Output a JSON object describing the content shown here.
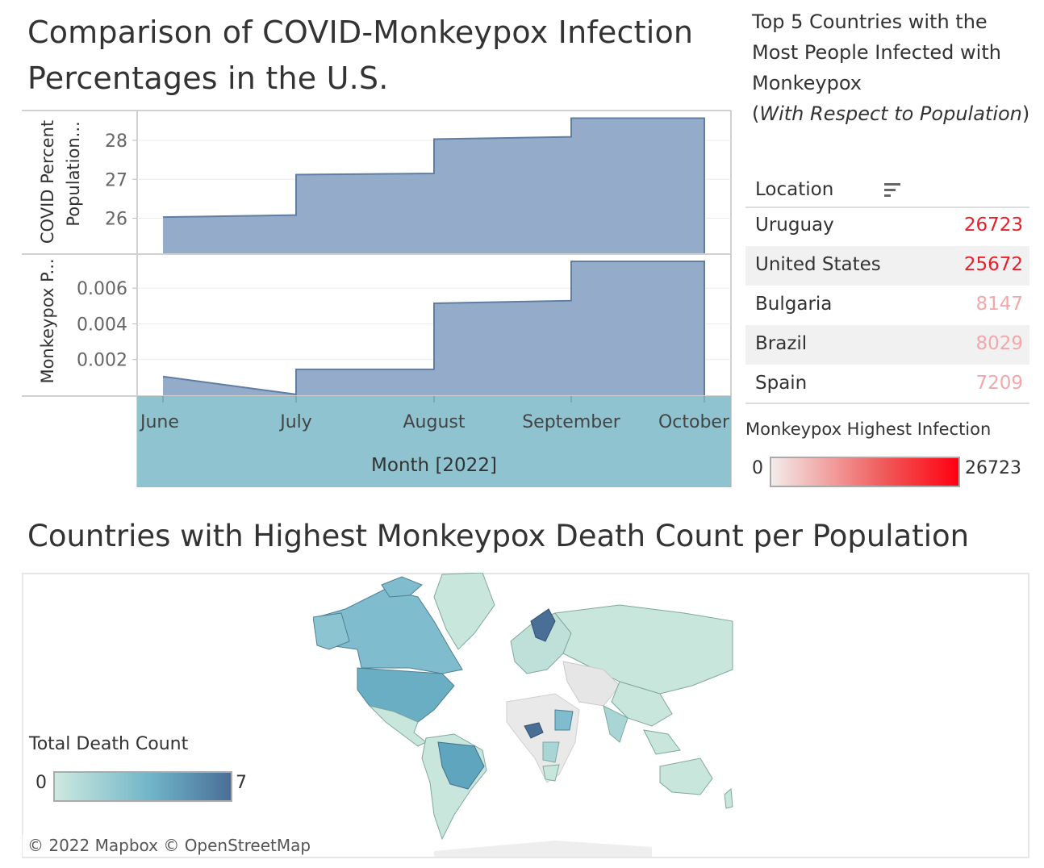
{
  "titles": {
    "main": "Comparison of COVID-Monkeypox Infection Percentages in the U.S.",
    "map": "Countries with Highest Monkeypox Death Count per Population"
  },
  "side_panel": {
    "title_line": "Top 5 Countries with the Most People Infected with Monkeypox",
    "subtitle_open": "(",
    "subtitle_italic": "With Respect to Population",
    "subtitle_close": ")",
    "column_header": "Location",
    "rows": [
      {
        "location": "Uruguay",
        "value": "26723",
        "color": "#e8202a"
      },
      {
        "location": "United States",
        "value": "25672",
        "color": "#e8202a"
      },
      {
        "location": "Bulgaria",
        "value": "8147",
        "color": "#f2a8ab"
      },
      {
        "location": "Brazil",
        "value": "8029",
        "color": "#f2a8ab"
      },
      {
        "location": "Spain",
        "value": "7209",
        "color": "#f2a8ab"
      }
    ]
  },
  "legend_infection": {
    "title": "Monkeypox Highest Infection",
    "min": "0",
    "max": "26723"
  },
  "legend_death": {
    "title": "Total Death Count",
    "min": "0",
    "max": "7"
  },
  "map_attribution": "© 2022 Mapbox  © OpenStreetMap",
  "colors": {
    "area_fill": "#8ea8c6",
    "area_stroke": "#5f7ea3",
    "axis_band": "#8fc3cf",
    "infection_max": "#ff0010",
    "death_max": "#4a6f97"
  },
  "chart_data": [
    {
      "type": "area",
      "title": "Comparison of COVID-Monkeypox Infection Percentages in the U.S.",
      "xlabel": "Month [2022]",
      "ylabel": "COVID Percent Population...",
      "categories": [
        "June",
        "July",
        "August",
        "September",
        "October"
      ],
      "ylim": [
        25.1,
        28.6
      ],
      "yticks": [
        "26",
        "27",
        "28"
      ],
      "steps": [
        {
          "start": 26.03,
          "end": 26.08
        },
        {
          "start": 27.12,
          "end": 27.15
        },
        {
          "start": 28.03,
          "end": 28.09
        },
        {
          "start": 28.57,
          "end": 28.57
        }
      ]
    },
    {
      "type": "area",
      "xlabel": "Month [2022]",
      "ylabel": "Monkeypox P...",
      "categories": [
        "June",
        "July",
        "August",
        "September",
        "October"
      ],
      "ylim": [
        0,
        0.0075
      ],
      "yticks": [
        "0.002",
        "0.004",
        "0.006"
      ],
      "steps": [
        {
          "start": 0.00105,
          "end": 5e-05
        },
        {
          "start": 0.00145,
          "end": 0.00145
        },
        {
          "start": 0.00515,
          "end": 0.0053
        },
        {
          "start": 0.0075,
          "end": 0.0075
        }
      ]
    }
  ]
}
